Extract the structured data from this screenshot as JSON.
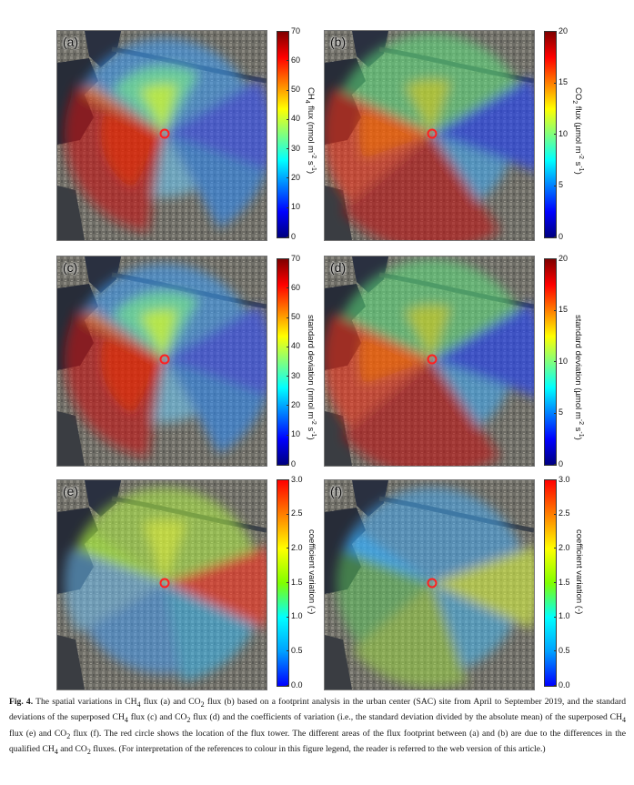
{
  "figure": {
    "panels": [
      {
        "label": "(a)",
        "variable": "ch4",
        "colorbar": "cb1"
      },
      {
        "label": "(b)",
        "variable": "co2",
        "colorbar": "cb2"
      },
      {
        "label": "(c)",
        "variable": "ch4",
        "colorbar": "cb3"
      },
      {
        "label": "(d)",
        "variable": "co2",
        "colorbar": "cb4"
      },
      {
        "label": "(e)",
        "variable": "cv",
        "colorbar": "cb5"
      },
      {
        "label": "(f)",
        "variable": "cv",
        "colorbar": "cb6"
      }
    ],
    "colorbars": {
      "cb1": {
        "ticks": [
          "0",
          "10",
          "20",
          "30",
          "40",
          "50",
          "60",
          "70"
        ],
        "title_main": "CH",
        "title_sub": "4",
        "title_rest": " flux (nmol m",
        "title_sup1": "-2",
        "title_mid": " s",
        "title_sup2": "-1",
        "title_end": ")"
      },
      "cb2": {
        "ticks": [
          "0",
          "5",
          "10",
          "15",
          "20"
        ],
        "title_main": "CO",
        "title_sub": "2",
        "title_rest": " flux (µmol m",
        "title_sup1": "-2",
        "title_mid": " s",
        "title_sup2": "-1",
        "title_end": ")"
      },
      "cb3": {
        "ticks": [
          "0",
          "10",
          "20",
          "30",
          "40",
          "50",
          "60",
          "70"
        ],
        "title_main": "standard deviation (nmol m",
        "title_sub": "",
        "title_rest": "",
        "title_sup1": "-2",
        "title_mid": " s",
        "title_sup2": "-1",
        "title_end": ")"
      },
      "cb4": {
        "ticks": [
          "0",
          "5",
          "10",
          "15",
          "20"
        ],
        "title_main": "standard deviation (µmol m",
        "title_sub": "",
        "title_rest": "",
        "title_sup1": "-2",
        "title_mid": " s",
        "title_sup2": "-1",
        "title_end": ")"
      },
      "cb5": {
        "ticks": [
          "0.0",
          "0.5",
          "1.0",
          "1.5",
          "2.0",
          "2.5",
          "3.0"
        ],
        "title_main": "coefficient variation (-)",
        "title_sub": "",
        "title_rest": "",
        "title_sup1": "",
        "title_mid": "",
        "title_sup2": "",
        "title_end": ""
      },
      "cb6": {
        "ticks": [
          "0.0",
          "0.5",
          "1.0",
          "1.5",
          "2.0",
          "2.5",
          "3.0"
        ],
        "title_main": "coefficient variation (-)",
        "title_sub": "",
        "title_rest": "",
        "title_sup1": "",
        "title_mid": "",
        "title_sup2": "",
        "title_end": ""
      }
    }
  },
  "caption": {
    "fig_label": "Fig. 4.",
    "p1": "  The spatial variations in CH",
    "s1": "4",
    "p2": " flux (a) and CO",
    "s2": "2",
    "p3": " flux (b) based on a footprint analysis in the urban center (SAC) site from April to September 2019, and the standard deviations of the superposed CH",
    "s3": "4",
    "p4": " flux (c) and CO",
    "s4": "2",
    "p5": " flux (d) and the coefficients of variation (i.e., the standard deviation divided by the absolute mean) of the superposed CH",
    "s5": "4",
    "p6": " flux (e) and CO",
    "s6": "2",
    "p7": " flux (f). The red circle shows the location of the flux tower. The different areas of the flux footprint between (a) and (b) are due to the differences in the qualified CH",
    "s7": "4",
    "p8": " and CO",
    "s8": "2",
    "p9": " fluxes. (For interpretation of the references to colour in this figure legend, the reader is referred to the web version of this article.)"
  },
  "colors": {
    "jet": [
      "#00007f",
      "#0000ff",
      "#007fff",
      "#00ffff",
      "#7fff7f",
      "#ffff00",
      "#ff7f00",
      "#ff0000",
      "#7f0000"
    ],
    "cv": [
      "#0000ff",
      "#00a0ff",
      "#00ffff",
      "#80ff00",
      "#ffff00",
      "#ff8000",
      "#ff0000"
    ],
    "tower": "#ff2020"
  }
}
